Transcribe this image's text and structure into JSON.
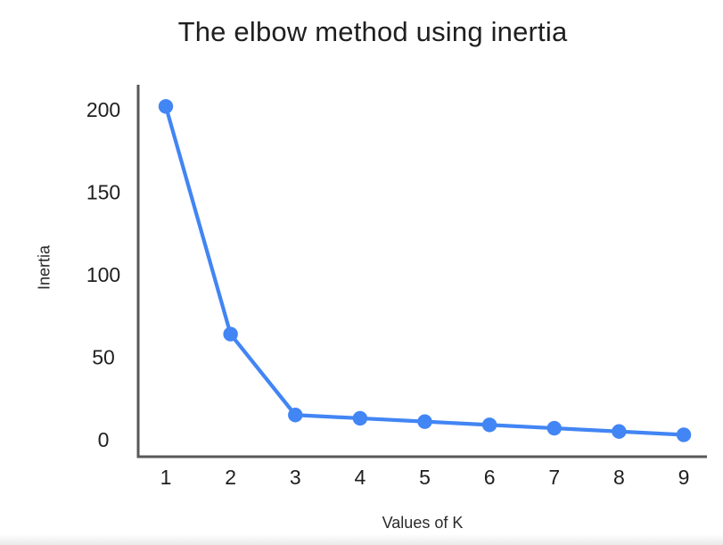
{
  "chart_data": {
    "type": "line",
    "title": "The elbow method using inertia",
    "xlabel": "Values of K",
    "ylabel": "Inertia",
    "x": [
      1,
      2,
      3,
      4,
      5,
      6,
      7,
      8,
      9
    ],
    "series": [
      {
        "name": "Inertia",
        "values": [
          202,
          64,
          15,
          13,
          11,
          9,
          7,
          5,
          3
        ]
      }
    ],
    "y_ticks": [
      0,
      50,
      100,
      150,
      200
    ],
    "ylim": [
      0,
      225
    ],
    "xlim": [
      1,
      9
    ],
    "grid": false,
    "legend": "none",
    "marker": "circle",
    "line_color": "#4285F4",
    "axis_color": "#58585a",
    "text_color": "#1f1f1f"
  }
}
